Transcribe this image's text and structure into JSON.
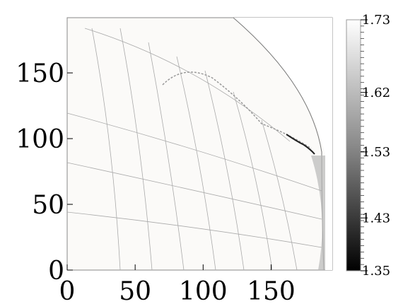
{
  "chart_data": {
    "type": "field",
    "xlim": [
      0,
      195
    ],
    "xticks": [
      0,
      50,
      100,
      150
    ],
    "ylim": [
      0,
      192
    ],
    "yticks": [
      0,
      50,
      100,
      150
    ],
    "colorbar": {
      "lim": [
        1.35,
        1.73
      ],
      "ticks": [
        1.35,
        1.43,
        1.53,
        1.62,
        1.73
      ]
    }
  }
}
